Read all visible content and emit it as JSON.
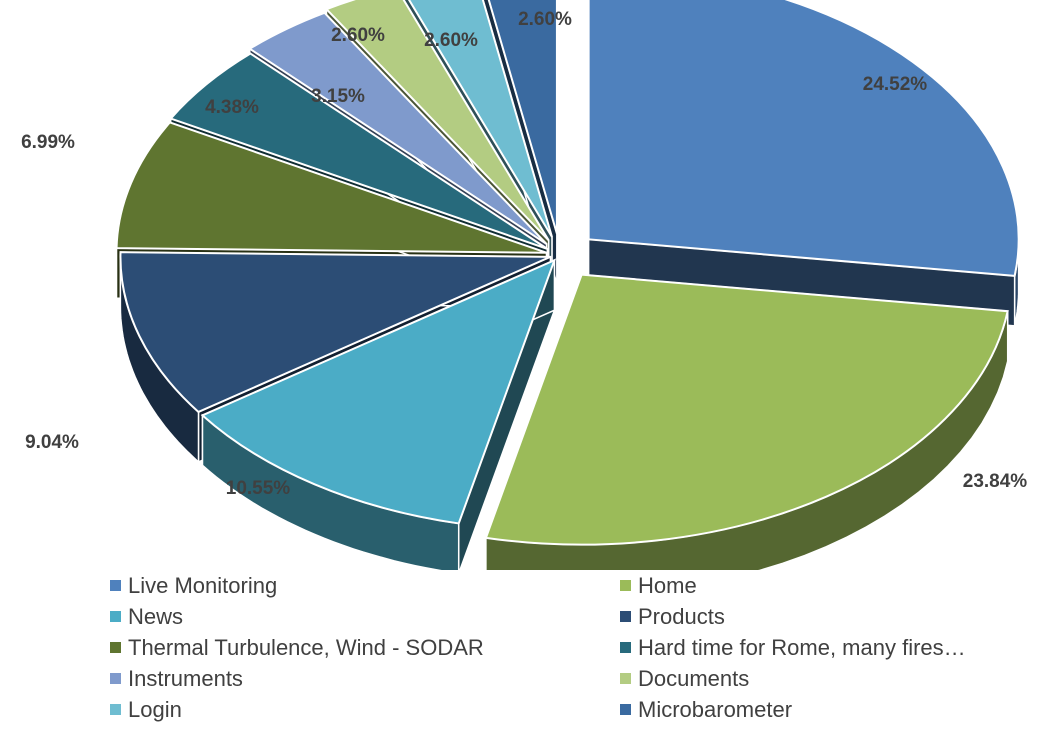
{
  "chart_data": {
    "type": "pie",
    "style": "exploded-3d",
    "slices": [
      {
        "label": "Live Monitoring",
        "value": 24.52,
        "display": "24.52%",
        "color": "#4F81BD"
      },
      {
        "label": "Home",
        "value": 23.84,
        "display": "23.84%",
        "color": "#9BBB59"
      },
      {
        "label": "News",
        "value": 10.55,
        "display": "10.55%",
        "color": "#4BACC6"
      },
      {
        "label": "Products",
        "value": 9.04,
        "display": "9.04%",
        "color": "#2C4D75"
      },
      {
        "label": "Thermal Turbulence, Wind - SODAR",
        "value": 6.99,
        "display": "6.99%",
        "color": "#5F7530"
      },
      {
        "label": "Hard time for Rome, many fires…",
        "value": 4.38,
        "display": "4.38%",
        "color": "#276A7C"
      },
      {
        "label": "Instruments",
        "value": 3.15,
        "display": "3.15%",
        "color": "#7F9ACC"
      },
      {
        "label": "Documents",
        "value": 2.6,
        "display": "2.60%",
        "color": "#B3CC82"
      },
      {
        "label": "Login",
        "value": 2.6,
        "display": "2.60%",
        "color": "#6FBDD1"
      },
      {
        "label": "Microbarometer",
        "value": 2.6,
        "display": "2.60%",
        "color": "#3A6AA0"
      }
    ],
    "legend_placement": "bottom"
  }
}
